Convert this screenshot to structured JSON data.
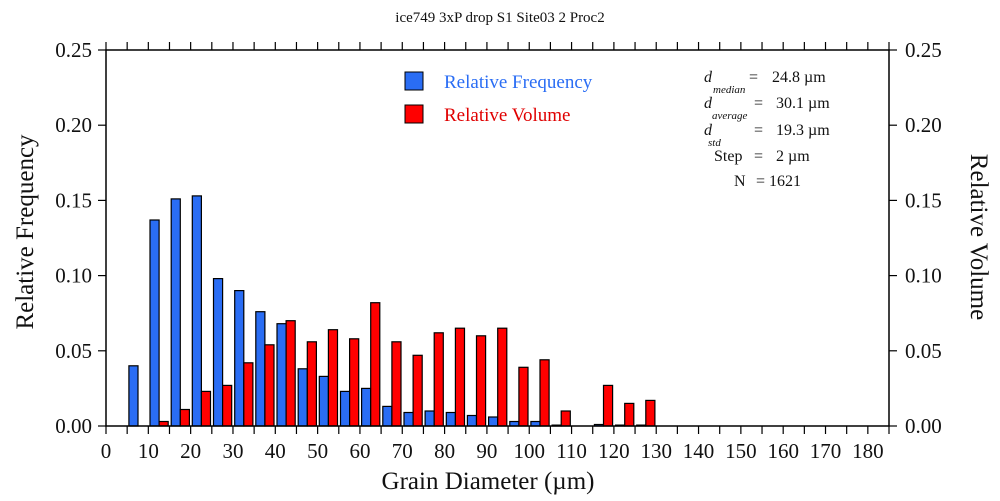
{
  "chart_data": {
    "type": "bar",
    "title": "ice749 3xP drop S1 Site03 2 Proc2",
    "xlabel": "Grain Diameter (µm)",
    "ylabel_left": "Relative Frequency",
    "ylabel_right": "Relative Volume",
    "xlim": [
      0,
      185
    ],
    "ylim": [
      0,
      0.25
    ],
    "bin_width": 5,
    "x_ticks": [
      "0",
      "10",
      "20",
      "30",
      "40",
      "50",
      "60",
      "70",
      "80",
      "90",
      "100",
      "110",
      "120",
      "130",
      "140",
      "150",
      "160",
      "170",
      "180"
    ],
    "x_tick_values": [
      0,
      10,
      20,
      30,
      40,
      50,
      60,
      70,
      80,
      90,
      100,
      110,
      120,
      130,
      140,
      150,
      160,
      170,
      180
    ],
    "y_ticks": [
      "0.00",
      "0.05",
      "0.10",
      "0.15",
      "0.20",
      "0.25"
    ],
    "y_tick_values": [
      0,
      0.05,
      0.1,
      0.15,
      0.2,
      0.25
    ],
    "bins": [
      5,
      10,
      15,
      20,
      25,
      30,
      35,
      40,
      45,
      50,
      55,
      60,
      65,
      70,
      75,
      80,
      85,
      90,
      95,
      100,
      105,
      110,
      115,
      120,
      125
    ],
    "series": [
      {
        "name": "Relative Frequency",
        "color": "#2a6df4",
        "values": [
          0.04,
          0.137,
          0.151,
          0.153,
          0.098,
          0.09,
          0.076,
          0.068,
          0.038,
          0.033,
          0.023,
          0.025,
          0.013,
          0.009,
          0.01,
          0.009,
          0.007,
          0.006,
          0.003,
          0.003,
          0.0006,
          0,
          0.001,
          0.0006,
          0.0006
        ]
      },
      {
        "name": "Relative Volume",
        "color": "#ff0000",
        "values": [
          0,
          0.003,
          0.011,
          0.023,
          0.027,
          0.042,
          0.054,
          0.07,
          0.056,
          0.064,
          0.058,
          0.082,
          0.056,
          0.047,
          0.062,
          0.065,
          0.06,
          0.065,
          0.039,
          0.044,
          0.01,
          0,
          0.027,
          0.015,
          0.017
        ]
      }
    ],
    "legend": {
      "placement": "top-center",
      "items": [
        {
          "label": "Relative Frequency",
          "color": "#2a6df4"
        },
        {
          "label": "Relative Volume",
          "color": "#ff0000"
        }
      ]
    },
    "stats": [
      {
        "symbol": "d",
        "sub": "median",
        "eq": "=",
        "value": "24.8 µm"
      },
      {
        "symbol": "d",
        "sub": "average",
        "eq": "=",
        "value": "30.1 µm"
      },
      {
        "symbol": "d",
        "sub": "std",
        "eq": "=",
        "value": "19.3 µm"
      },
      {
        "symbol": "Step",
        "sub": "",
        "eq": "=",
        "value": "2 µm"
      },
      {
        "symbol": "N",
        "sub": "",
        "eq": "=",
        "value": "1621"
      }
    ]
  }
}
